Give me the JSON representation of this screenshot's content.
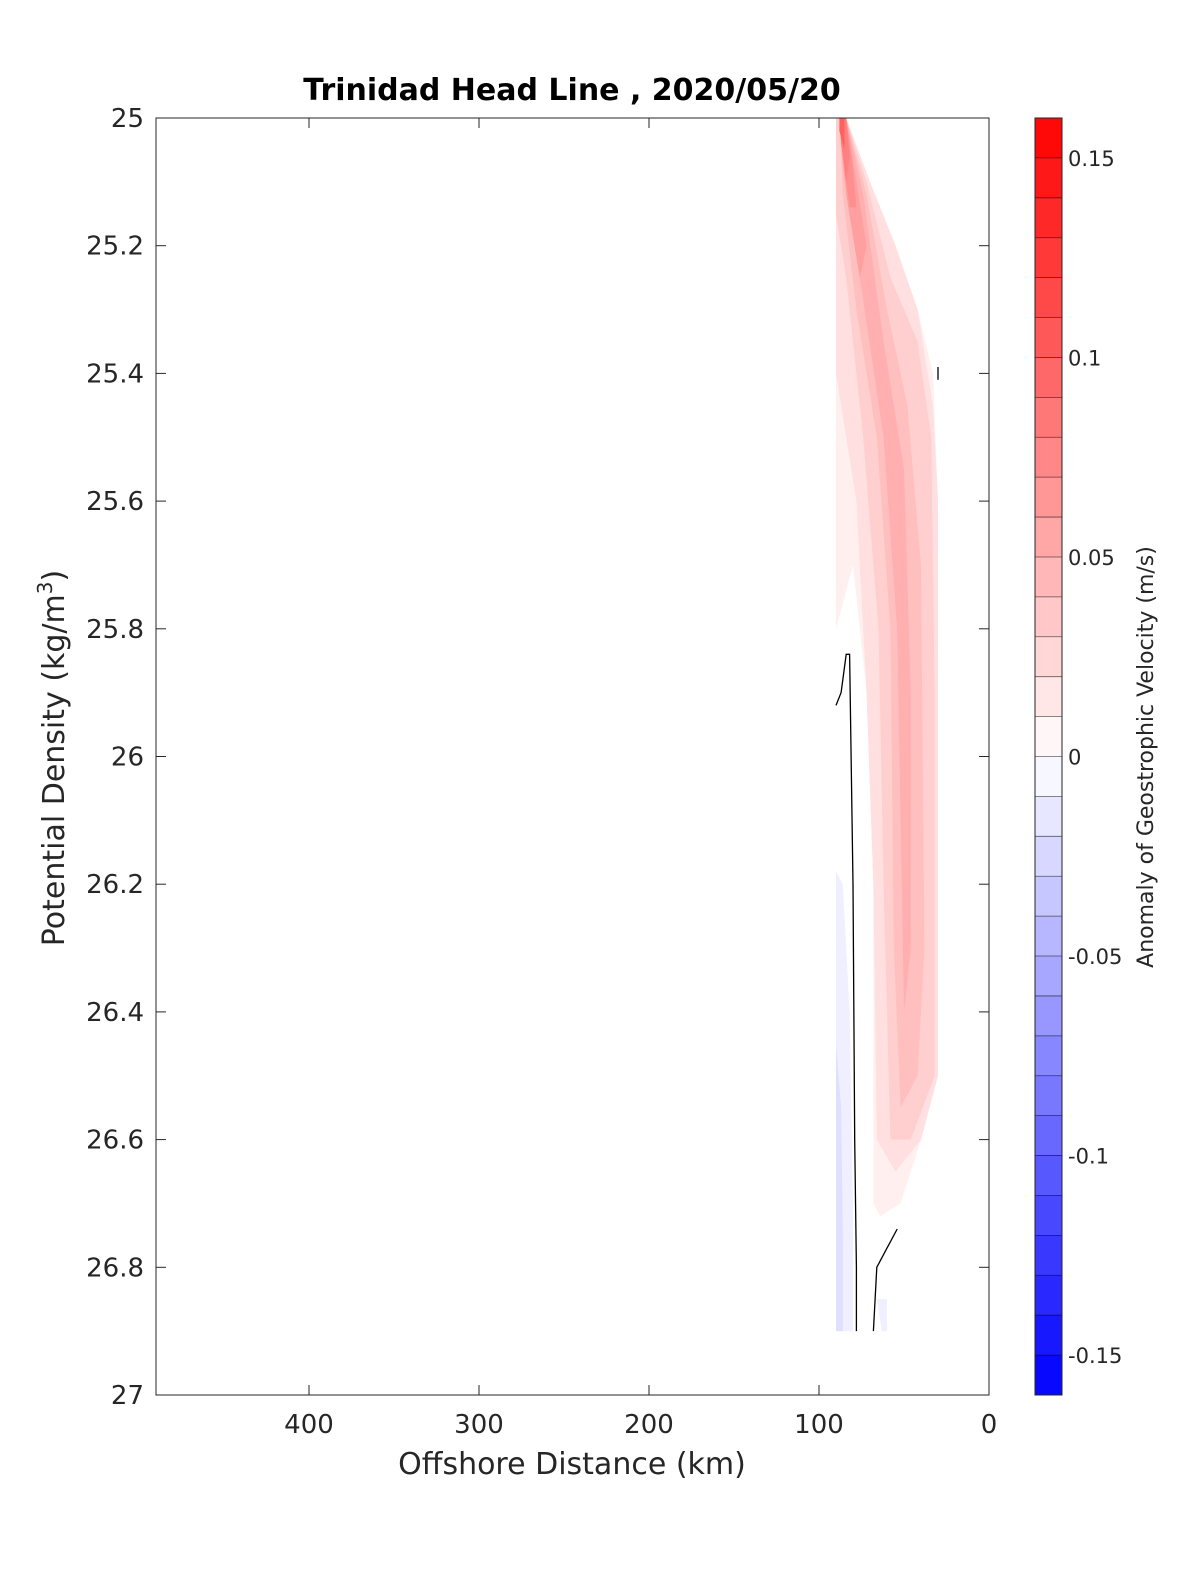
{
  "chart_data": {
    "type": "contour",
    "title": "Trinidad Head Line , 2020/05/20",
    "xlabel": "Offshore Distance (km)",
    "ylabel_main": "Potential Density (kg/m",
    "ylabel_sup": "3",
    "ylabel_end": ")",
    "xlim": [
      490,
      0
    ],
    "x_reversed": true,
    "ylim": [
      25,
      27
    ],
    "y_reversed": true,
    "x_ticks": [
      "400",
      "300",
      "200",
      "100",
      "0"
    ],
    "x_tick_values": [
      400,
      300,
      200,
      100,
      0
    ],
    "y_ticks": [
      "25",
      "25.2",
      "25.4",
      "25.6",
      "25.8",
      "26",
      "26.2",
      "26.4",
      "26.6",
      "26.8",
      "27"
    ],
    "y_tick_values": [
      25,
      25.2,
      25.4,
      25.6,
      25.8,
      26,
      26.2,
      26.4,
      26.6,
      26.8,
      27
    ],
    "colorbar": {
      "label": "Anomaly of Geostrophic Velocity (m/s)",
      "range": [
        -0.16,
        0.16
      ],
      "step": 0.01,
      "tick_labels": [
        "0.15",
        "0.1",
        "0.05",
        "0",
        "-0.05",
        "-0.1",
        "-0.15"
      ],
      "tick_values": [
        0.15,
        0.1,
        0.05,
        0,
        -0.05,
        -0.1,
        -0.15
      ],
      "neg_color": "#0000ff",
      "pos_color": "#ff0000",
      "zero_color": "#ffffff"
    },
    "filled_regions": [
      {
        "level": 0.01,
        "points": [
          [
            90,
            25.0
          ],
          [
            84,
            25.0
          ],
          [
            70,
            25.1
          ],
          [
            55,
            25.2
          ],
          [
            42,
            25.3
          ],
          [
            33,
            25.4
          ],
          [
            30,
            25.6
          ],
          [
            30,
            26.3
          ],
          [
            30,
            26.5
          ],
          [
            40,
            26.6
          ],
          [
            52,
            26.7
          ],
          [
            64,
            26.72
          ],
          [
            68,
            26.7
          ],
          [
            68,
            26.2
          ],
          [
            72,
            25.9
          ],
          [
            80,
            25.7
          ],
          [
            90,
            25.8
          ]
        ]
      },
      {
        "level": 0.02,
        "points": [
          [
            90,
            25.0
          ],
          [
            84,
            25.0
          ],
          [
            70,
            25.1
          ],
          [
            55,
            25.2
          ],
          [
            42,
            25.3
          ],
          [
            33,
            25.45
          ],
          [
            30,
            25.6
          ],
          [
            30,
            26.5
          ],
          [
            40,
            26.6
          ],
          [
            55,
            26.65
          ],
          [
            66,
            26.6
          ],
          [
            68,
            26.2
          ],
          [
            72,
            25.9
          ],
          [
            78,
            25.6
          ],
          [
            90,
            25.4
          ]
        ]
      },
      {
        "level": 0.03,
        "points": [
          [
            90,
            25.0
          ],
          [
            84,
            25.0
          ],
          [
            72,
            25.1
          ],
          [
            58,
            25.25
          ],
          [
            42,
            25.35
          ],
          [
            34,
            25.5
          ],
          [
            32,
            25.9
          ],
          [
            32,
            26.5
          ],
          [
            46,
            26.6
          ],
          [
            58,
            26.6
          ],
          [
            62,
            26.2
          ],
          [
            65,
            25.8
          ],
          [
            74,
            25.5
          ],
          [
            84,
            25.25
          ],
          [
            90,
            25.15
          ]
        ]
      },
      {
        "level": 0.04,
        "points": [
          [
            88,
            25.0
          ],
          [
            84,
            25.0
          ],
          [
            72,
            25.12
          ],
          [
            60,
            25.3
          ],
          [
            48,
            25.45
          ],
          [
            40,
            25.7
          ],
          [
            38,
            26.3
          ],
          [
            42,
            26.5
          ],
          [
            52,
            26.55
          ],
          [
            56,
            26.3
          ],
          [
            58,
            25.8
          ],
          [
            66,
            25.5
          ],
          [
            78,
            25.3
          ],
          [
            86,
            25.12
          ]
        ]
      },
      {
        "level": 0.05,
        "points": [
          [
            88,
            25.0
          ],
          [
            84,
            25.0
          ],
          [
            74,
            25.12
          ],
          [
            62,
            25.35
          ],
          [
            50,
            25.55
          ],
          [
            46,
            25.9
          ],
          [
            46,
            26.3
          ],
          [
            50,
            26.4
          ],
          [
            52,
            26.1
          ],
          [
            54,
            25.8
          ],
          [
            62,
            25.5
          ],
          [
            76,
            25.25
          ],
          [
            86,
            25.08
          ]
        ]
      },
      {
        "level": 0.06,
        "points": [
          [
            88,
            25.0
          ],
          [
            84,
            25.0
          ],
          [
            78,
            25.1
          ],
          [
            72,
            25.2
          ],
          [
            76,
            25.25
          ],
          [
            84,
            25.12
          ]
        ]
      },
      {
        "level": 0.07,
        "points": [
          [
            88,
            25.0
          ],
          [
            84,
            25.0
          ],
          [
            80,
            25.08
          ],
          [
            78,
            25.14
          ],
          [
            82,
            25.14
          ],
          [
            86,
            25.06
          ]
        ]
      },
      {
        "level": 0.08,
        "points": [
          [
            88,
            25.0
          ],
          [
            84,
            25.0
          ],
          [
            82,
            25.06
          ],
          [
            84,
            25.1
          ],
          [
            87,
            25.04
          ]
        ]
      },
      {
        "level": 0.1,
        "points": [
          [
            88,
            25.0
          ],
          [
            85,
            25.0
          ],
          [
            85,
            25.05
          ],
          [
            88,
            25.02
          ]
        ]
      },
      {
        "level": -0.01,
        "points": [
          [
            90,
            26.18
          ],
          [
            86,
            26.2
          ],
          [
            82,
            26.4
          ],
          [
            80,
            26.7
          ],
          [
            80,
            26.9
          ],
          [
            90,
            26.9
          ]
        ]
      },
      {
        "level": -0.02,
        "points": [
          [
            90,
            26.45
          ],
          [
            87,
            26.55
          ],
          [
            86,
            26.75
          ],
          [
            86,
            26.9
          ],
          [
            90,
            26.9
          ]
        ]
      },
      {
        "level": -0.01,
        "points": [
          [
            66,
            26.85
          ],
          [
            63,
            26.9
          ],
          [
            60,
            26.9
          ],
          [
            60,
            26.85
          ]
        ]
      }
    ],
    "zero_contours": [
      {
        "points": [
          [
            90,
            25.92
          ],
          [
            87,
            25.9
          ],
          [
            84,
            25.84
          ],
          [
            82,
            25.84
          ],
          [
            80,
            26.2
          ],
          [
            79,
            26.6
          ],
          [
            78,
            26.8
          ],
          [
            78,
            26.9
          ]
        ]
      },
      {
        "points": [
          [
            54,
            26.74
          ],
          [
            60,
            26.77
          ],
          [
            66,
            26.8
          ],
          [
            68,
            26.9
          ]
        ]
      },
      {
        "points": [
          [
            30,
            25.39
          ],
          [
            30,
            25.41
          ]
        ]
      }
    ]
  }
}
